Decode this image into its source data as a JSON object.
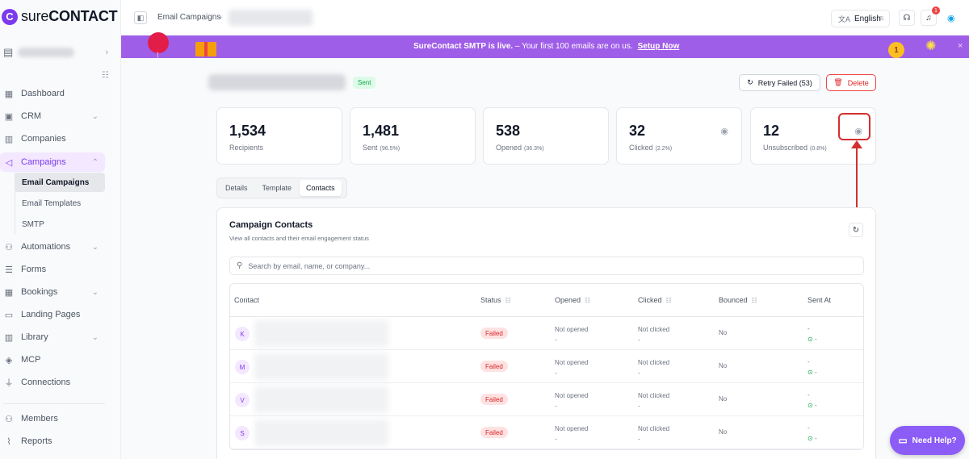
{
  "brand": {
    "logo_letter": "C",
    "logo_text_light": "sure",
    "logo_text_bold": "CONTACT"
  },
  "sidebar": {
    "items": [
      {
        "label": "Dashboard",
        "icon": "grid-icon"
      },
      {
        "label": "CRM",
        "icon": "id-card-icon"
      },
      {
        "label": "Companies",
        "icon": "building-icon"
      },
      {
        "label": "Campaigns",
        "icon": "megaphone-icon"
      },
      {
        "label": "Automations",
        "icon": "flow-icon"
      },
      {
        "label": "Forms",
        "icon": "form-icon"
      },
      {
        "label": "Bookings",
        "icon": "calendar-icon"
      },
      {
        "label": "Landing Pages",
        "icon": "layout-icon"
      },
      {
        "label": "Library",
        "icon": "library-icon"
      },
      {
        "label": "MCP",
        "icon": "mcp-icon"
      },
      {
        "label": "Connections",
        "icon": "plug-icon"
      },
      {
        "label": "Members",
        "icon": "users-icon"
      },
      {
        "label": "Reports",
        "icon": "chart-icon"
      }
    ],
    "sub_items": [
      {
        "label": "Email Campaigns"
      },
      {
        "label": "Email Templates"
      },
      {
        "label": "SMTP"
      }
    ]
  },
  "topbar": {
    "breadcrumb": "Email Campaigns",
    "language": "English",
    "notification_count": "1"
  },
  "banner": {
    "headline": "SureContact SMTP is live.",
    "message": " – Your first 100 emails are on us.",
    "link": "Setup Now",
    "medal_number": "1"
  },
  "campaign": {
    "status_badge": "Sent",
    "retry_label": "Retry Failed (53)",
    "delete_label": "Delete"
  },
  "stats": [
    {
      "value": "1,534",
      "label": "Recipients",
      "pct": ""
    },
    {
      "value": "1,481",
      "label": "Sent",
      "pct": "(96.5%)"
    },
    {
      "value": "538",
      "label": "Opened",
      "pct": "(36.3%)"
    },
    {
      "value": "32",
      "label": "Clicked",
      "pct": "(2.2%)"
    },
    {
      "value": "12",
      "label": "Unsubscribed",
      "pct": "(0.8%)"
    }
  ],
  "tabs": [
    {
      "label": "Details"
    },
    {
      "label": "Template"
    },
    {
      "label": "Contacts"
    }
  ],
  "contacts": {
    "title": "Campaign Contacts",
    "subtitle": "View all contacts and their email engagement status",
    "search_placeholder": "Search by email, name, or company...",
    "columns": [
      "Contact",
      "Status",
      "Opened",
      "Clicked",
      "Bounced",
      "Sent At"
    ],
    "rows": [
      {
        "initial": "K",
        "status": "Failed",
        "opened": "Not opened",
        "opened_sub": "-",
        "clicked": "Not clicked",
        "clicked_sub": "-",
        "bounced": "No",
        "sent_at": "-",
        "sent_sub": "-"
      },
      {
        "initial": "M",
        "status": "Failed",
        "opened": "Not opened",
        "opened_sub": "-",
        "clicked": "Not clicked",
        "clicked_sub": "-",
        "bounced": "No",
        "sent_at": "-",
        "sent_sub": "-"
      },
      {
        "initial": "V",
        "status": "Failed",
        "opened": "Not opened",
        "opened_sub": "-",
        "clicked": "Not clicked",
        "clicked_sub": "-",
        "bounced": "No",
        "sent_at": "-",
        "sent_sub": "-"
      },
      {
        "initial": "S",
        "status": "Failed",
        "opened": "Not opened",
        "opened_sub": "-",
        "clicked": "Not clicked",
        "clicked_sub": "-",
        "bounced": "No",
        "sent_at": "-",
        "sent_sub": "-"
      }
    ]
  },
  "help_button": "Need Help?",
  "colors": {
    "accent": "#7c3aed",
    "banner": "#9f5ee8",
    "annotation": "#d32f2f"
  }
}
